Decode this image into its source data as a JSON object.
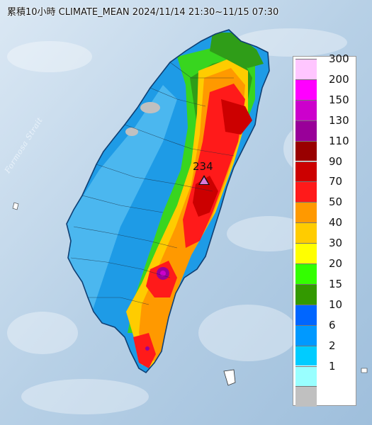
{
  "map": {
    "title": "累積10小時 CLIMATE_MEAN 2024/11/14 21:30~11/15 07:30",
    "sea_label": "Formosa Strait",
    "max_value_label": "234",
    "max_marker_icon": "triangle-marker-icon",
    "sea_color": "#b9d3ea",
    "land_edge_color": "#1f5fa3"
  },
  "legend": {
    "items": [
      {
        "label": "300",
        "color": "#ffc6ff"
      },
      {
        "label": "200",
        "color": "#ff00ff"
      },
      {
        "label": "150",
        "color": "#cc00cc"
      },
      {
        "label": "130",
        "color": "#990099"
      },
      {
        "label": "110",
        "color": "#990000"
      },
      {
        "label": "90",
        "color": "#cc0000"
      },
      {
        "label": "70",
        "color": "#ff1a1a"
      },
      {
        "label": "50",
        "color": "#ff9900"
      },
      {
        "label": "40",
        "color": "#ffcc00"
      },
      {
        "label": "30",
        "color": "#ffff00"
      },
      {
        "label": "20",
        "color": "#33ff00"
      },
      {
        "label": "15",
        "color": "#339900"
      },
      {
        "label": "10",
        "color": "#0066ff"
      },
      {
        "label": "6",
        "color": "#0099ff"
      },
      {
        "label": "2",
        "color": "#00ccff"
      },
      {
        "label": "1",
        "color": "#99ffff"
      },
      {
        "label": "",
        "color": "#c0c0c0"
      }
    ]
  }
}
